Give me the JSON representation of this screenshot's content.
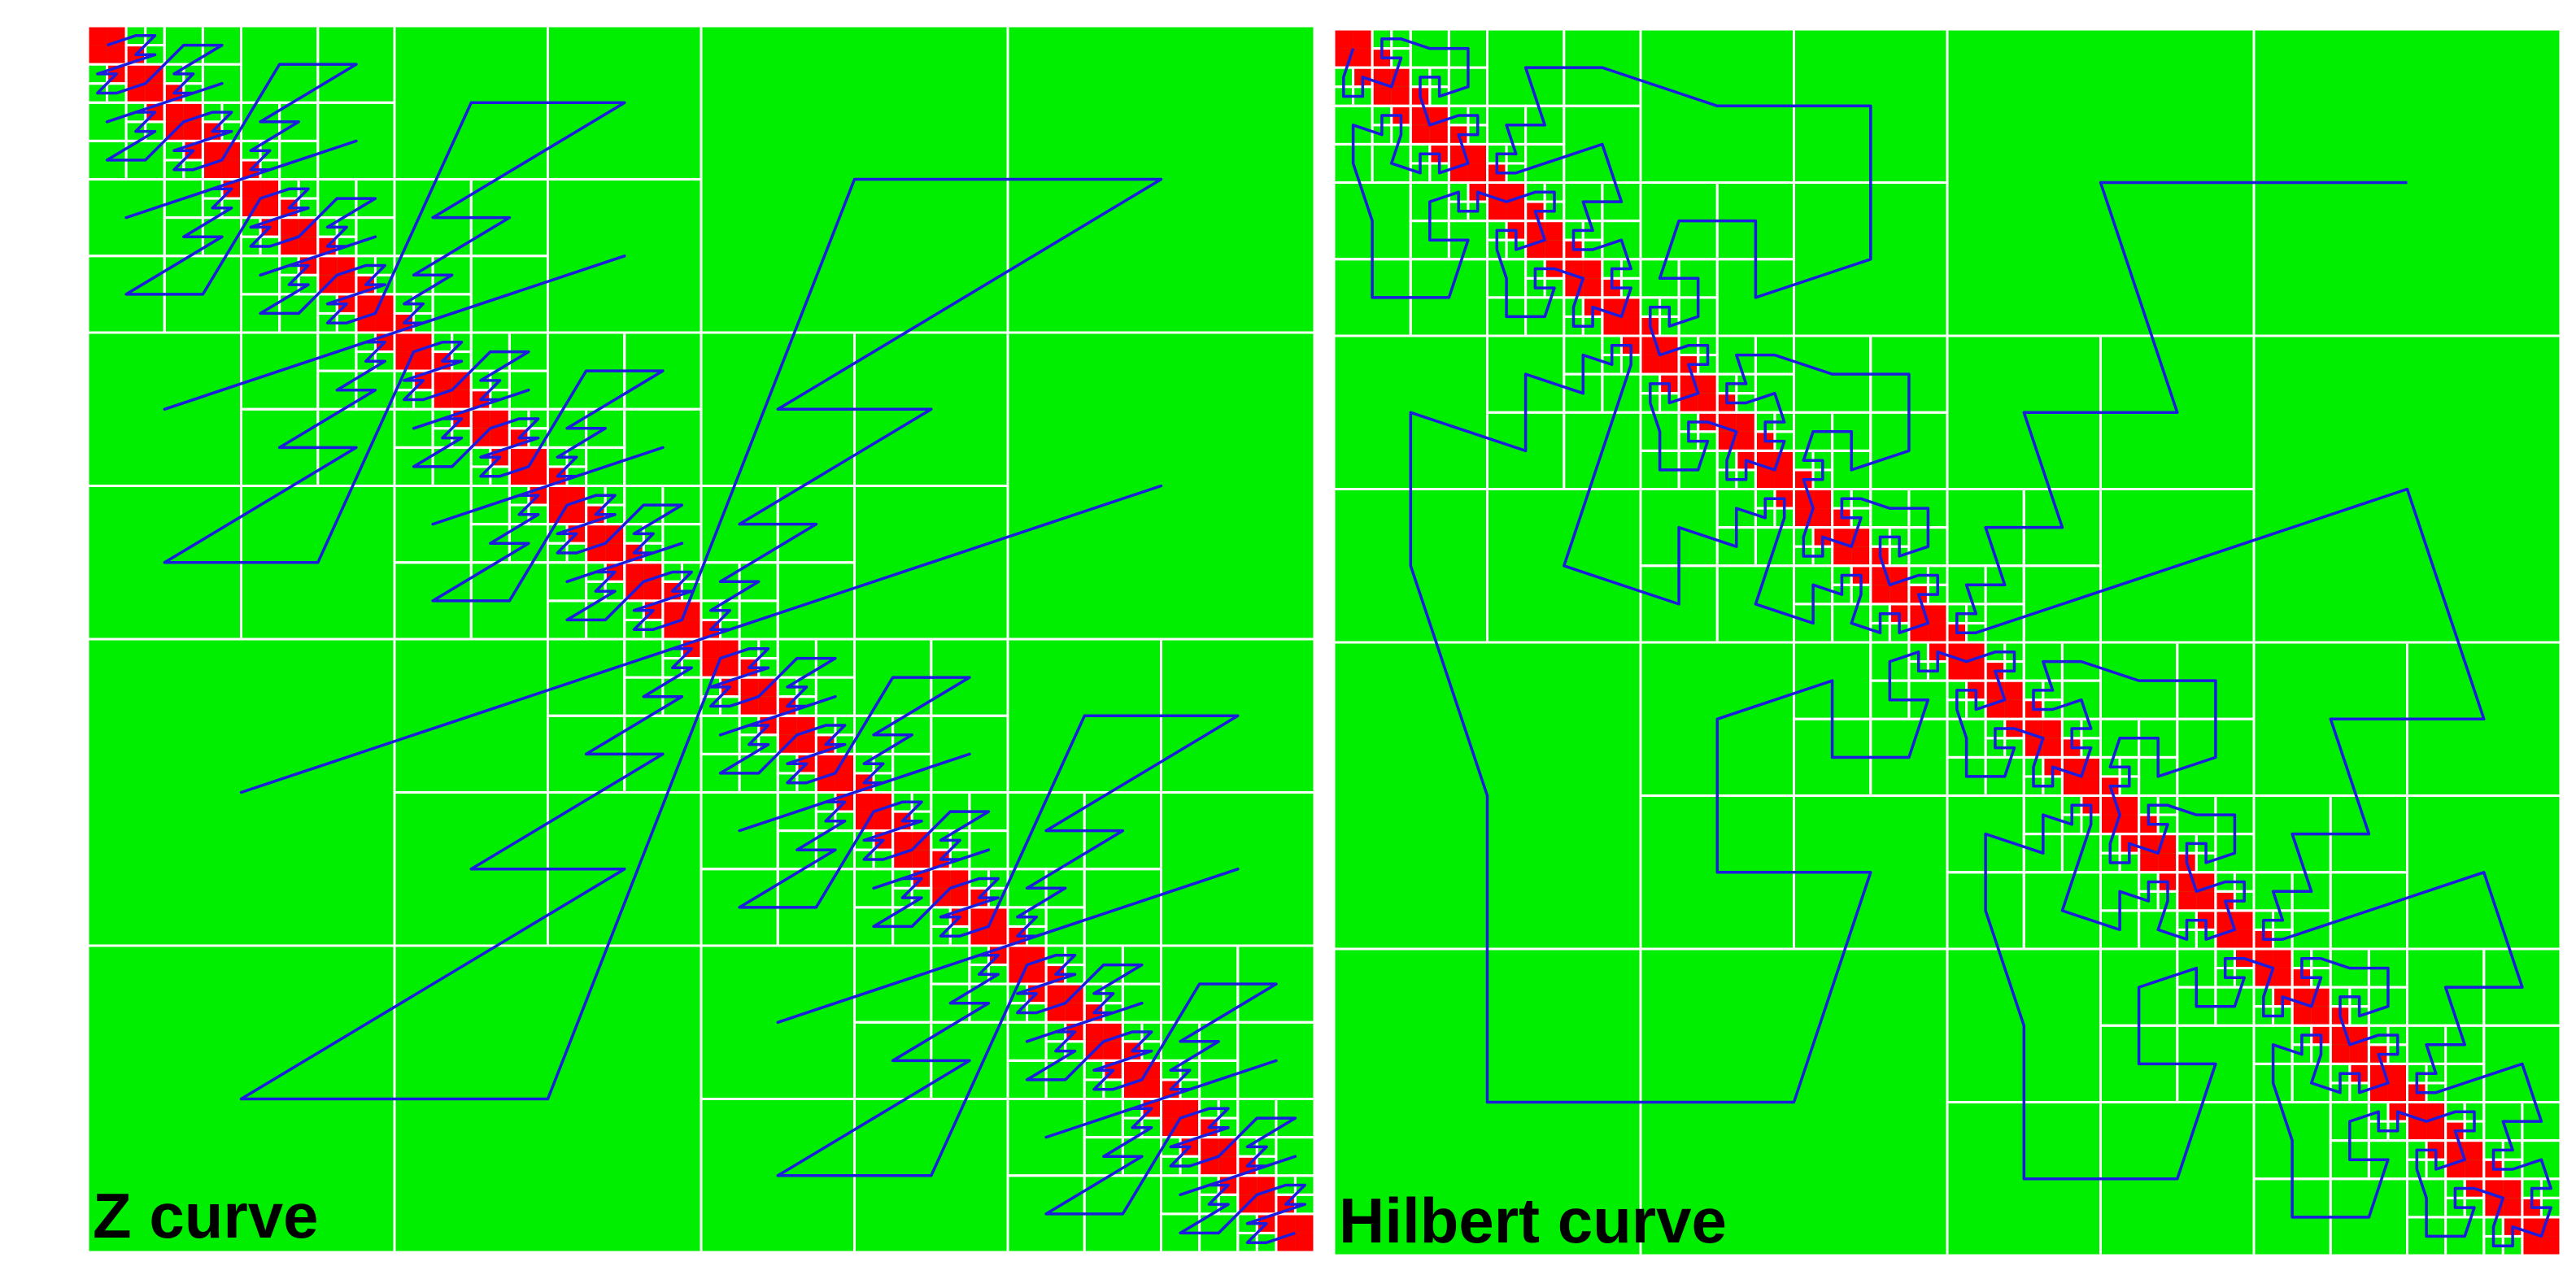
{
  "colors": {
    "background": "#ffffff",
    "empty_cell": "#00ee00",
    "filled_cell": "#ff0000",
    "grid": "#ffffff",
    "curve": "#1c1cde"
  },
  "cell_pattern": "filled cells form a diagonal band about 3 fine cells wide; quadtree subdivides only where cells are partially filled",
  "panels": [
    {
      "caption": "Z curve",
      "curve_type": "z-order (Morton)"
    },
    {
      "caption": "Hilbert curve",
      "curve_type": "hilbert"
    }
  ]
}
